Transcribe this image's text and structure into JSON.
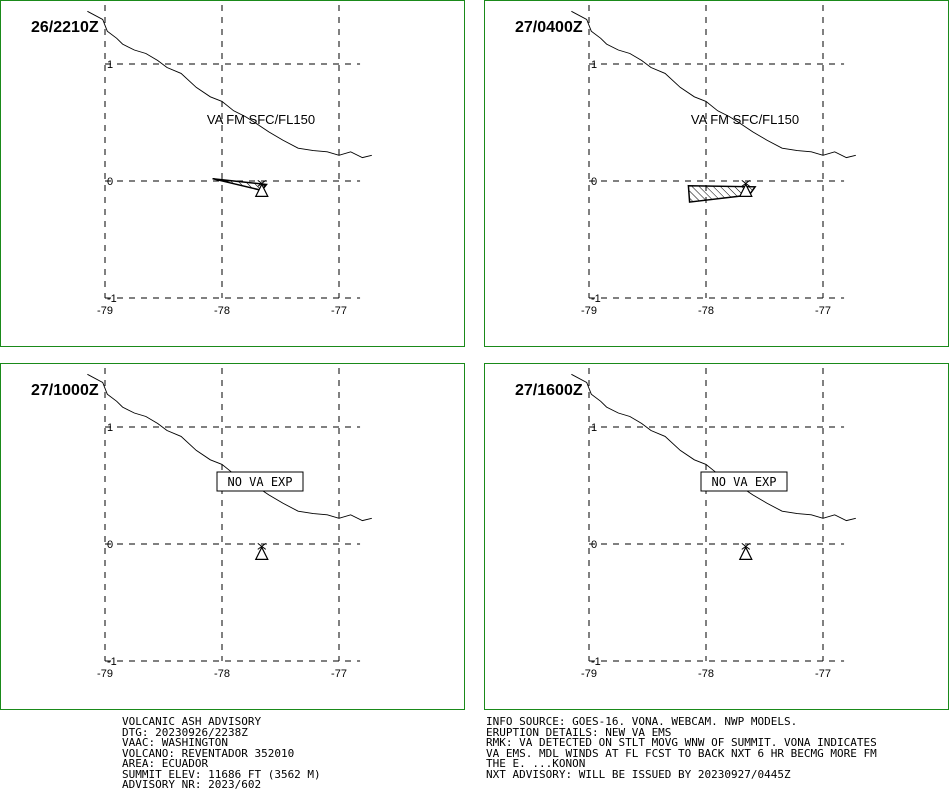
{
  "panels": [
    {
      "id": "p1",
      "time": "26/2210Z",
      "annotation": "VA FM SFC/FL150",
      "boxed": false,
      "ash": [
        [
          -78.08,
          0.02
        ],
        [
          -77.62,
          -0.03
        ],
        [
          -77.66,
          -0.08
        ]
      ]
    },
    {
      "id": "p2",
      "time": "27/0400Z",
      "annotation": "VA FM SFC/FL150",
      "boxed": false,
      "ash": [
        [
          -78.15,
          -0.04
        ],
        [
          -77.58,
          -0.05
        ],
        [
          -77.63,
          -0.12
        ],
        [
          -78.14,
          -0.18
        ]
      ]
    },
    {
      "id": "p3",
      "time": "27/1000Z",
      "annotation": "NO VA EXP",
      "boxed": true,
      "ash": []
    },
    {
      "id": "p4",
      "time": "27/1600Z",
      "annotation": "NO VA EXP",
      "boxed": true,
      "ash": []
    }
  ],
  "axes": {
    "x_ticks": [
      {
        "value": -79,
        "label": "-79"
      },
      {
        "value": -78,
        "label": "-78"
      },
      {
        "value": -77,
        "label": "-77"
      }
    ],
    "y_ticks": [
      {
        "value": 1,
        "label": "1"
      },
      {
        "value": 0,
        "label": "0"
      },
      {
        "value": -1,
        "label": "-1"
      }
    ]
  },
  "volcano": {
    "lon": -77.66,
    "lat": -0.08
  },
  "coastline": [
    [
      -79.15,
      1.45
    ],
    [
      -79.02,
      1.38
    ],
    [
      -78.98,
      1.28
    ],
    [
      -78.9,
      1.22
    ],
    [
      -78.85,
      1.17
    ],
    [
      -78.75,
      1.12
    ],
    [
      -78.65,
      1.09
    ],
    [
      -78.55,
      1.03
    ],
    [
      -78.47,
      0.97
    ],
    [
      -78.35,
      0.92
    ],
    [
      -78.22,
      0.8
    ],
    [
      -78.1,
      0.72
    ],
    [
      -78.0,
      0.68
    ],
    [
      -77.9,
      0.6
    ],
    [
      -77.8,
      0.55
    ],
    [
      -77.72,
      0.5
    ],
    [
      -77.6,
      0.42
    ],
    [
      -77.48,
      0.35
    ],
    [
      -77.35,
      0.28
    ],
    [
      -77.22,
      0.26
    ],
    [
      -77.1,
      0.25
    ],
    [
      -77.0,
      0.22
    ],
    [
      -76.9,
      0.25
    ],
    [
      -76.8,
      0.2
    ],
    [
      -76.72,
      0.22
    ]
  ],
  "advisory_left": [
    "VOLCANIC ASH ADVISORY",
    "DTG: 20230926/2238Z",
    "VAAC: WASHINGTON",
    "VOLCANO: REVENTADOR 352010",
    "AREA: ECUADOR",
    "SUMMIT ELEV: 11686 FT (3562 M)",
    "ADVISORY NR: 2023/602"
  ],
  "advisory_right": [
    "INFO SOURCE: GOES-16. VONA. WEBCAM. NWP MODELS.",
    "ERUPTION DETAILS: NEW VA EMS",
    "RMK: VA DETECTED ON STLT MOVG WNW OF SUMMIT. VONA INDICATES",
    "VA EMS. MDL WINDS AT FL FCST TO BACK NXT 6 HR BECMG MORE FM",
    "THE E. ...KONON",
    "NXT ADVISORY: WILL BE ISSUED BY 20230927/0445Z"
  ]
}
